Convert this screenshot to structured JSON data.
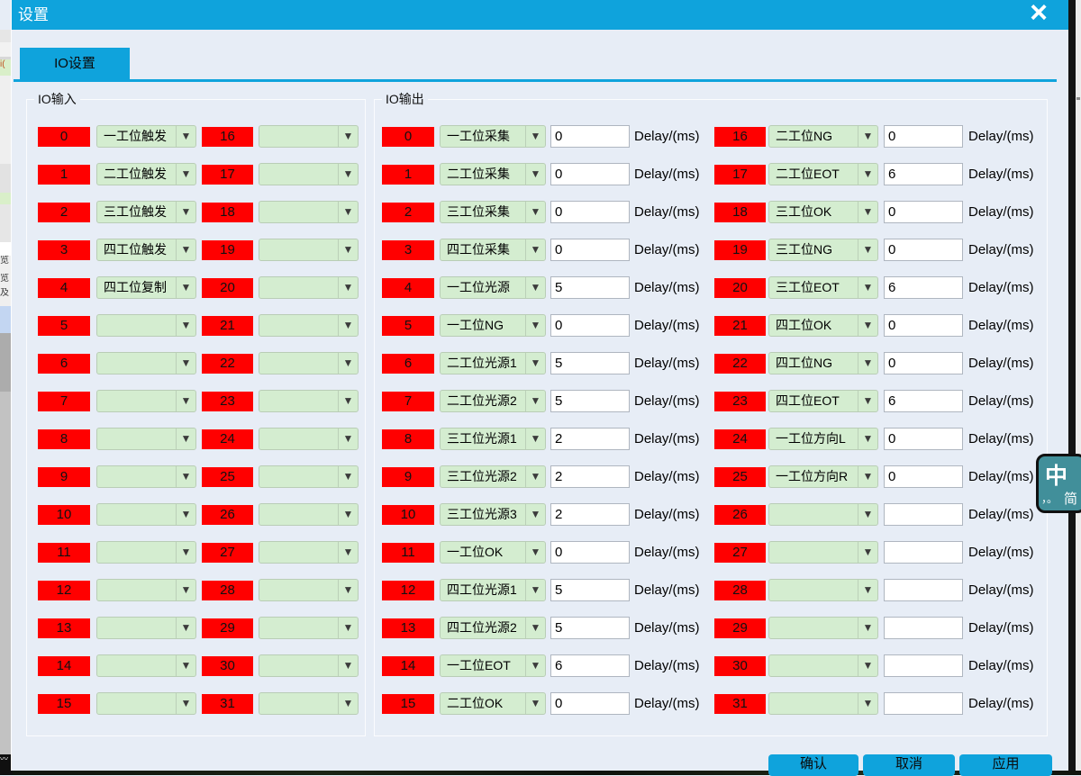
{
  "window": {
    "title": "设置",
    "close_label": "×"
  },
  "tab": {
    "label": "IO设置"
  },
  "io_input": {
    "group_label": "IO输入",
    "channels": [
      {
        "index": "0",
        "label": "一工位触发"
      },
      {
        "index": "1",
        "label": "二工位触发"
      },
      {
        "index": "2",
        "label": "三工位触发"
      },
      {
        "index": "3",
        "label": "四工位触发"
      },
      {
        "index": "4",
        "label": "四工位复制"
      },
      {
        "index": "5",
        "label": ""
      },
      {
        "index": "6",
        "label": ""
      },
      {
        "index": "7",
        "label": ""
      },
      {
        "index": "8",
        "label": ""
      },
      {
        "index": "9",
        "label": ""
      },
      {
        "index": "10",
        "label": ""
      },
      {
        "index": "11",
        "label": ""
      },
      {
        "index": "12",
        "label": ""
      },
      {
        "index": "13",
        "label": ""
      },
      {
        "index": "14",
        "label": ""
      },
      {
        "index": "15",
        "label": ""
      },
      {
        "index": "16",
        "label": ""
      },
      {
        "index": "17",
        "label": ""
      },
      {
        "index": "18",
        "label": ""
      },
      {
        "index": "19",
        "label": ""
      },
      {
        "index": "20",
        "label": ""
      },
      {
        "index": "21",
        "label": ""
      },
      {
        "index": "22",
        "label": ""
      },
      {
        "index": "23",
        "label": ""
      },
      {
        "index": "24",
        "label": ""
      },
      {
        "index": "25",
        "label": ""
      },
      {
        "index": "26",
        "label": ""
      },
      {
        "index": "27",
        "label": ""
      },
      {
        "index": "28",
        "label": ""
      },
      {
        "index": "29",
        "label": ""
      },
      {
        "index": "30",
        "label": ""
      },
      {
        "index": "31",
        "label": ""
      }
    ]
  },
  "io_output": {
    "group_label": "IO输出",
    "delay_unit": "Delay/(ms)",
    "channels": [
      {
        "index": "0",
        "label": "一工位采集",
        "delay": "0"
      },
      {
        "index": "1",
        "label": "二工位采集",
        "delay": "0"
      },
      {
        "index": "2",
        "label": "三工位采集",
        "delay": "0"
      },
      {
        "index": "3",
        "label": "四工位采集",
        "delay": "0"
      },
      {
        "index": "4",
        "label": "一工位光源",
        "delay": "5"
      },
      {
        "index": "5",
        "label": "一工位NG",
        "delay": "0"
      },
      {
        "index": "6",
        "label": "二工位光源1",
        "delay": "5"
      },
      {
        "index": "7",
        "label": "二工位光源2",
        "delay": "5"
      },
      {
        "index": "8",
        "label": "三工位光源1",
        "delay": "2"
      },
      {
        "index": "9",
        "label": "三工位光源2",
        "delay": "2"
      },
      {
        "index": "10",
        "label": "三工位光源3",
        "delay": "2"
      },
      {
        "index": "11",
        "label": "一工位OK",
        "delay": "0"
      },
      {
        "index": "12",
        "label": "四工位光源1",
        "delay": "5"
      },
      {
        "index": "13",
        "label": "四工位光源2",
        "delay": "5"
      },
      {
        "index": "14",
        "label": "一工位EOT",
        "delay": "6"
      },
      {
        "index": "15",
        "label": "二工位OK",
        "delay": "0"
      },
      {
        "index": "16",
        "label": "二工位NG",
        "delay": "0"
      },
      {
        "index": "17",
        "label": "二工位EOT",
        "delay": "6"
      },
      {
        "index": "18",
        "label": "三工位OK",
        "delay": "0"
      },
      {
        "index": "19",
        "label": "三工位NG",
        "delay": "0"
      },
      {
        "index": "20",
        "label": "三工位EOT",
        "delay": "6"
      },
      {
        "index": "21",
        "label": "四工位OK",
        "delay": "0"
      },
      {
        "index": "22",
        "label": "四工位NG",
        "delay": "0"
      },
      {
        "index": "23",
        "label": "四工位EOT",
        "delay": "6"
      },
      {
        "index": "24",
        "label": "一工位方向L",
        "delay": "0"
      },
      {
        "index": "25",
        "label": "一工位方向R",
        "delay": "0"
      },
      {
        "index": "26",
        "label": "",
        "delay": ""
      },
      {
        "index": "27",
        "label": "",
        "delay": ""
      },
      {
        "index": "28",
        "label": "",
        "delay": ""
      },
      {
        "index": "29",
        "label": "",
        "delay": ""
      },
      {
        "index": "30",
        "label": "",
        "delay": ""
      },
      {
        "index": "31",
        "label": "",
        "delay": ""
      }
    ]
  },
  "footer": {
    "confirm_label": "确认",
    "cancel_label": "取消",
    "apply_label": "应用"
  },
  "ime": {
    "mode": "中",
    "punctuation": "，。",
    "charset": "简"
  },
  "background": {
    "left_strip_fragments": [
      "i(",
      "览",
      "览",
      "及"
    ]
  },
  "colors": {
    "accent": "#0FA3DC",
    "badge_red": "#FF0000",
    "dropdown_green": "#D4EDD0",
    "dialog_bg": "#E7EDF6",
    "ime_teal": "#418F9A"
  }
}
